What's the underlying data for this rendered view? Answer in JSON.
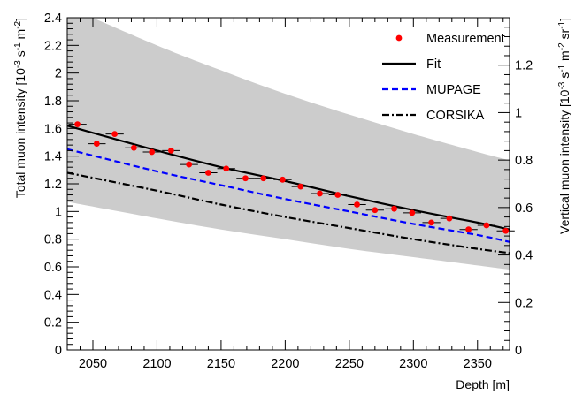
{
  "chart_data": {
    "type": "scatter",
    "xlabel": "Depth [m]",
    "ylabel_left": "Total muon intensity [10^-3 s^-1 m^-2]",
    "ylabel_right": "Vertical muon intensity [10^-3 s^-1 m^-2 sr^-1]",
    "xlim": [
      2030,
      2375
    ],
    "ylim": [
      0,
      2.4
    ],
    "ylim_right": [
      0,
      1.4
    ],
    "x_ticks": [
      2050,
      2100,
      2150,
      2200,
      2250,
      2300,
      2350
    ],
    "y_ticks": [
      0,
      0.2,
      0.4,
      0.6,
      0.8,
      1,
      1.2,
      1.4,
      1.6,
      1.8,
      2,
      2.2,
      2.4
    ],
    "y_right_ticks": [
      0,
      0.2,
      0.4,
      0.6,
      0.8,
      1,
      1.2
    ],
    "legend_position": "top-right",
    "series": [
      {
        "name": "Measurement",
        "kind": "points",
        "color": "#ff0000",
        "x": [
          2038,
          2053,
          2067,
          2082,
          2096,
          2111,
          2125,
          2140,
          2154,
          2169,
          2183,
          2198,
          2212,
          2227,
          2241,
          2256,
          2270,
          2285,
          2299,
          2314,
          2328,
          2343,
          2357,
          2372
        ],
        "y": [
          1.63,
          1.49,
          1.56,
          1.46,
          1.43,
          1.44,
          1.34,
          1.28,
          1.31,
          1.24,
          1.24,
          1.23,
          1.18,
          1.13,
          1.12,
          1.05,
          1.01,
          1.02,
          0.99,
          0.92,
          0.95,
          0.87,
          0.9,
          0.86
        ],
        "x_error": 7
      },
      {
        "name": "Fit",
        "kind": "line",
        "color": "#000000",
        "dash": "solid",
        "x": [
          2030,
          2100,
          2150,
          2200,
          2250,
          2300,
          2350,
          2375
        ],
        "y": [
          1.62,
          1.44,
          1.32,
          1.22,
          1.11,
          1.01,
          0.92,
          0.87
        ]
      },
      {
        "name": "MUPAGE",
        "kind": "line",
        "color": "#0000ff",
        "dash": "dashed",
        "x": [
          2030,
          2100,
          2150,
          2200,
          2250,
          2300,
          2350,
          2375
        ],
        "y": [
          1.45,
          1.29,
          1.19,
          1.09,
          1.0,
          0.91,
          0.83,
          0.78
        ]
      },
      {
        "name": "CORSIKA",
        "kind": "line",
        "color": "#000000",
        "dash": "dash-dot",
        "x": [
          2030,
          2100,
          2150,
          2200,
          2250,
          2300,
          2350,
          2375
        ],
        "y": [
          1.28,
          1.15,
          1.05,
          0.96,
          0.88,
          0.8,
          0.73,
          0.7
        ]
      }
    ],
    "band": {
      "color": "#cccccc",
      "x": [
        2030,
        2100,
        2150,
        2200,
        2250,
        2300,
        2350,
        2375
      ],
      "upper": [
        2.48,
        2.2,
        2.02,
        1.85,
        1.7,
        1.56,
        1.43,
        1.37
      ],
      "lower": [
        1.07,
        0.95,
        0.87,
        0.8,
        0.73,
        0.67,
        0.61,
        0.58
      ]
    }
  }
}
